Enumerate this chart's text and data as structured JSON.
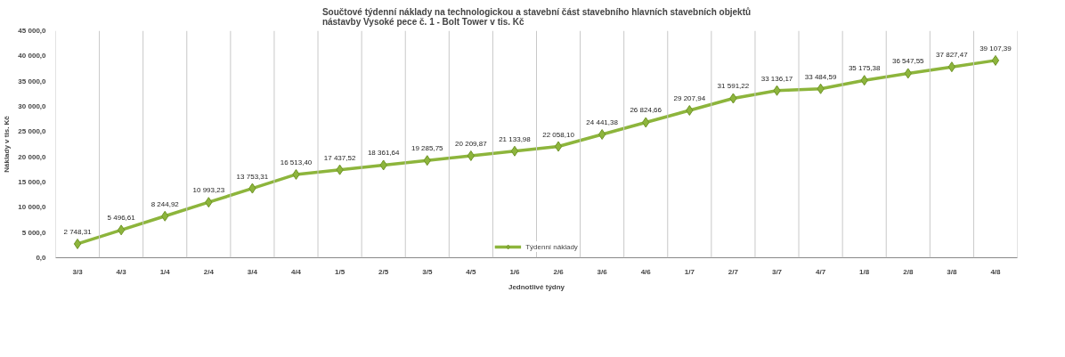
{
  "chart_data": {
    "type": "line",
    "title": "Součtové týdenní náklady na technologickou a stavební část stavebního hlavních stavebních objektů\nnástavby Vysoké pece č. 1 - Bolt Tower v tis. Kč",
    "xlabel": "Jednotlivé týdny",
    "ylabel": "Náklady v tis. Kč",
    "categories": [
      "3/3",
      "4/3",
      "1/4",
      "2/4",
      "3/4",
      "4/4",
      "1/5",
      "2/5",
      "3/5",
      "4/5",
      "1/6",
      "2/6",
      "3/6",
      "4/6",
      "1/7",
      "2/7",
      "3/7",
      "4/7",
      "1/8",
      "2/8",
      "3/8",
      "4/8"
    ],
    "series": [
      {
        "name": "Týdenní náklady",
        "color": "#8db53c",
        "values": [
          2748.31,
          5496.61,
          8244.92,
          10993.23,
          13753.31,
          16513.4,
          17437.52,
          18361.64,
          19285.75,
          20209.87,
          21133.98,
          22058.1,
          24441.38,
          26824.66,
          29207.94,
          31591.22,
          33136.17,
          33484.59,
          35175.38,
          36547.55,
          37827.47,
          39107.39
        ],
        "value_labels": [
          "2 748,31",
          "5 496,61",
          "8 244,92",
          "10 993,23",
          "13 753,31",
          "16 513,40",
          "17 437,52",
          "18 361,64",
          "19 285,75",
          "20 209,87",
          "21 133,98",
          "22 058,10",
          "24 441,38",
          "26 824,66",
          "29 207,94",
          "31 591,22",
          "33 136,17",
          "33 484,59",
          "35 175,38",
          "36 547,55",
          "37 827,47",
          "39 107,39"
        ]
      }
    ],
    "ylim": [
      0,
      45000
    ],
    "yticks": [
      {
        "value": 0,
        "label": "0,0"
      },
      {
        "value": 5000,
        "label": "5 000,0"
      },
      {
        "value": 10000,
        "label": "10 000,0"
      },
      {
        "value": 15000,
        "label": "15 000,0"
      },
      {
        "value": 20000,
        "label": "20 000,0"
      },
      {
        "value": 25000,
        "label": "25 000,0"
      },
      {
        "value": 30000,
        "label": "30 000,0"
      },
      {
        "value": 35000,
        "label": "35 000,0"
      },
      {
        "value": 40000,
        "label": "40 000,0"
      },
      {
        "value": 45000,
        "label": "45 000,0"
      }
    ],
    "grid": "x",
    "legend": "bottom",
    "marker": "diamond",
    "line_style": "solid"
  }
}
